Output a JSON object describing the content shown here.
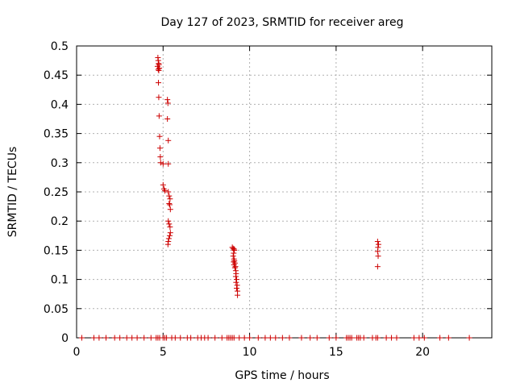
{
  "chart_data": {
    "type": "scatter",
    "title": "Day 127 of 2023, SRMTID for receiver areg",
    "xlabel": "GPS time / hours",
    "ylabel": "SRMTID / TECUs",
    "xlim": [
      0,
      24
    ],
    "ylim": [
      0,
      0.5
    ],
    "x_ticks": [
      0,
      5,
      10,
      15,
      20
    ],
    "x_tick_labels": [
      "0",
      "5",
      "10",
      "15",
      "20"
    ],
    "y_ticks": [
      0,
      0.05,
      0.1,
      0.15,
      0.2,
      0.25,
      0.3,
      0.35,
      0.4,
      0.45,
      0.5
    ],
    "y_tick_labels": [
      "0",
      "0.05",
      "0.1",
      "0.15",
      "0.2",
      "0.25",
      "0.3",
      "0.35",
      "0.4",
      "0.45",
      "0.5"
    ],
    "grid": true,
    "marker": "plus",
    "color": "#cc0000",
    "series": [
      {
        "name": "SRMTID",
        "points": [
          [
            4.7,
            0.48
          ],
          [
            4.72,
            0.475
          ],
          [
            4.74,
            0.47
          ],
          [
            4.76,
            0.468
          ],
          [
            4.68,
            0.465
          ],
          [
            4.78,
            0.462
          ],
          [
            4.72,
            0.46
          ],
          [
            4.75,
            0.458
          ],
          [
            4.73,
            0.437
          ],
          [
            4.75,
            0.412
          ],
          [
            4.77,
            0.38
          ],
          [
            4.8,
            0.345
          ],
          [
            4.82,
            0.325
          ],
          [
            4.84,
            0.31
          ],
          [
            4.86,
            0.3
          ],
          [
            5.0,
            0.298
          ],
          [
            5.3,
            0.298
          ],
          [
            5.25,
            0.408
          ],
          [
            5.28,
            0.402
          ],
          [
            5.25,
            0.375
          ],
          [
            5.3,
            0.338
          ],
          [
            5.0,
            0.262
          ],
          [
            5.05,
            0.255
          ],
          [
            5.1,
            0.252
          ],
          [
            5.3,
            0.25
          ],
          [
            5.35,
            0.243
          ],
          [
            5.4,
            0.238
          ],
          [
            5.35,
            0.23
          ],
          [
            5.38,
            0.228
          ],
          [
            5.42,
            0.22
          ],
          [
            5.3,
            0.2
          ],
          [
            5.35,
            0.195
          ],
          [
            5.4,
            0.19
          ],
          [
            5.42,
            0.18
          ],
          [
            5.38,
            0.175
          ],
          [
            5.33,
            0.17
          ],
          [
            5.3,
            0.165
          ],
          [
            5.28,
            0.16
          ],
          [
            9.0,
            0.155
          ],
          [
            9.05,
            0.153
          ],
          [
            9.1,
            0.152
          ],
          [
            9.12,
            0.15
          ],
          [
            9.08,
            0.145
          ],
          [
            9.05,
            0.14
          ],
          [
            9.1,
            0.135
          ],
          [
            9.12,
            0.132
          ],
          [
            9.08,
            0.13
          ],
          [
            9.15,
            0.128
          ],
          [
            9.1,
            0.125
          ],
          [
            9.18,
            0.122
          ],
          [
            9.15,
            0.12
          ],
          [
            9.2,
            0.115
          ],
          [
            9.22,
            0.11
          ],
          [
            9.2,
            0.105
          ],
          [
            9.25,
            0.1
          ],
          [
            9.22,
            0.095
          ],
          [
            9.28,
            0.09
          ],
          [
            9.25,
            0.085
          ],
          [
            9.3,
            0.08
          ],
          [
            9.3,
            0.073
          ],
          [
            17.4,
            0.165
          ],
          [
            17.45,
            0.16
          ],
          [
            17.42,
            0.155
          ],
          [
            17.4,
            0.148
          ],
          [
            17.43,
            0.14
          ],
          [
            17.4,
            0.122
          ],
          [
            0.3,
            0
          ],
          [
            1.0,
            0
          ],
          [
            1.3,
            0
          ],
          [
            1.7,
            0
          ],
          [
            2.2,
            0
          ],
          [
            2.5,
            0
          ],
          [
            2.9,
            0
          ],
          [
            3.2,
            0
          ],
          [
            3.5,
            0
          ],
          [
            3.9,
            0
          ],
          [
            4.3,
            0
          ],
          [
            4.6,
            0
          ],
          [
            4.7,
            0
          ],
          [
            4.8,
            0
          ],
          [
            5.0,
            0
          ],
          [
            5.1,
            0
          ],
          [
            5.2,
            0
          ],
          [
            5.5,
            0
          ],
          [
            5.7,
            0
          ],
          [
            6.0,
            0
          ],
          [
            6.4,
            0
          ],
          [
            6.6,
            0
          ],
          [
            7.0,
            0
          ],
          [
            7.2,
            0
          ],
          [
            7.4,
            0
          ],
          [
            7.6,
            0
          ],
          [
            8.0,
            0
          ],
          [
            8.4,
            0
          ],
          [
            8.7,
            0
          ],
          [
            8.8,
            0
          ],
          [
            8.9,
            0
          ],
          [
            9.0,
            0
          ],
          [
            9.1,
            0
          ],
          [
            9.4,
            0
          ],
          [
            9.7,
            0
          ],
          [
            10.0,
            0
          ],
          [
            10.5,
            0
          ],
          [
            10.9,
            0
          ],
          [
            11.2,
            0
          ],
          [
            11.5,
            0
          ],
          [
            11.9,
            0
          ],
          [
            12.3,
            0
          ],
          [
            13.0,
            0
          ],
          [
            13.5,
            0
          ],
          [
            13.9,
            0
          ],
          [
            14.6,
            0
          ],
          [
            15.0,
            0
          ],
          [
            15.6,
            0
          ],
          [
            15.7,
            0
          ],
          [
            15.8,
            0
          ],
          [
            15.9,
            0
          ],
          [
            16.2,
            0
          ],
          [
            16.3,
            0
          ],
          [
            16.4,
            0
          ],
          [
            16.6,
            0
          ],
          [
            17.1,
            0
          ],
          [
            17.3,
            0
          ],
          [
            17.4,
            0
          ],
          [
            17.9,
            0
          ],
          [
            18.2,
            0
          ],
          [
            18.5,
            0
          ],
          [
            19.5,
            0
          ],
          [
            19.8,
            0
          ],
          [
            20.1,
            0
          ],
          [
            21.0,
            0
          ],
          [
            21.5,
            0
          ],
          [
            22.7,
            0
          ]
        ]
      }
    ]
  }
}
